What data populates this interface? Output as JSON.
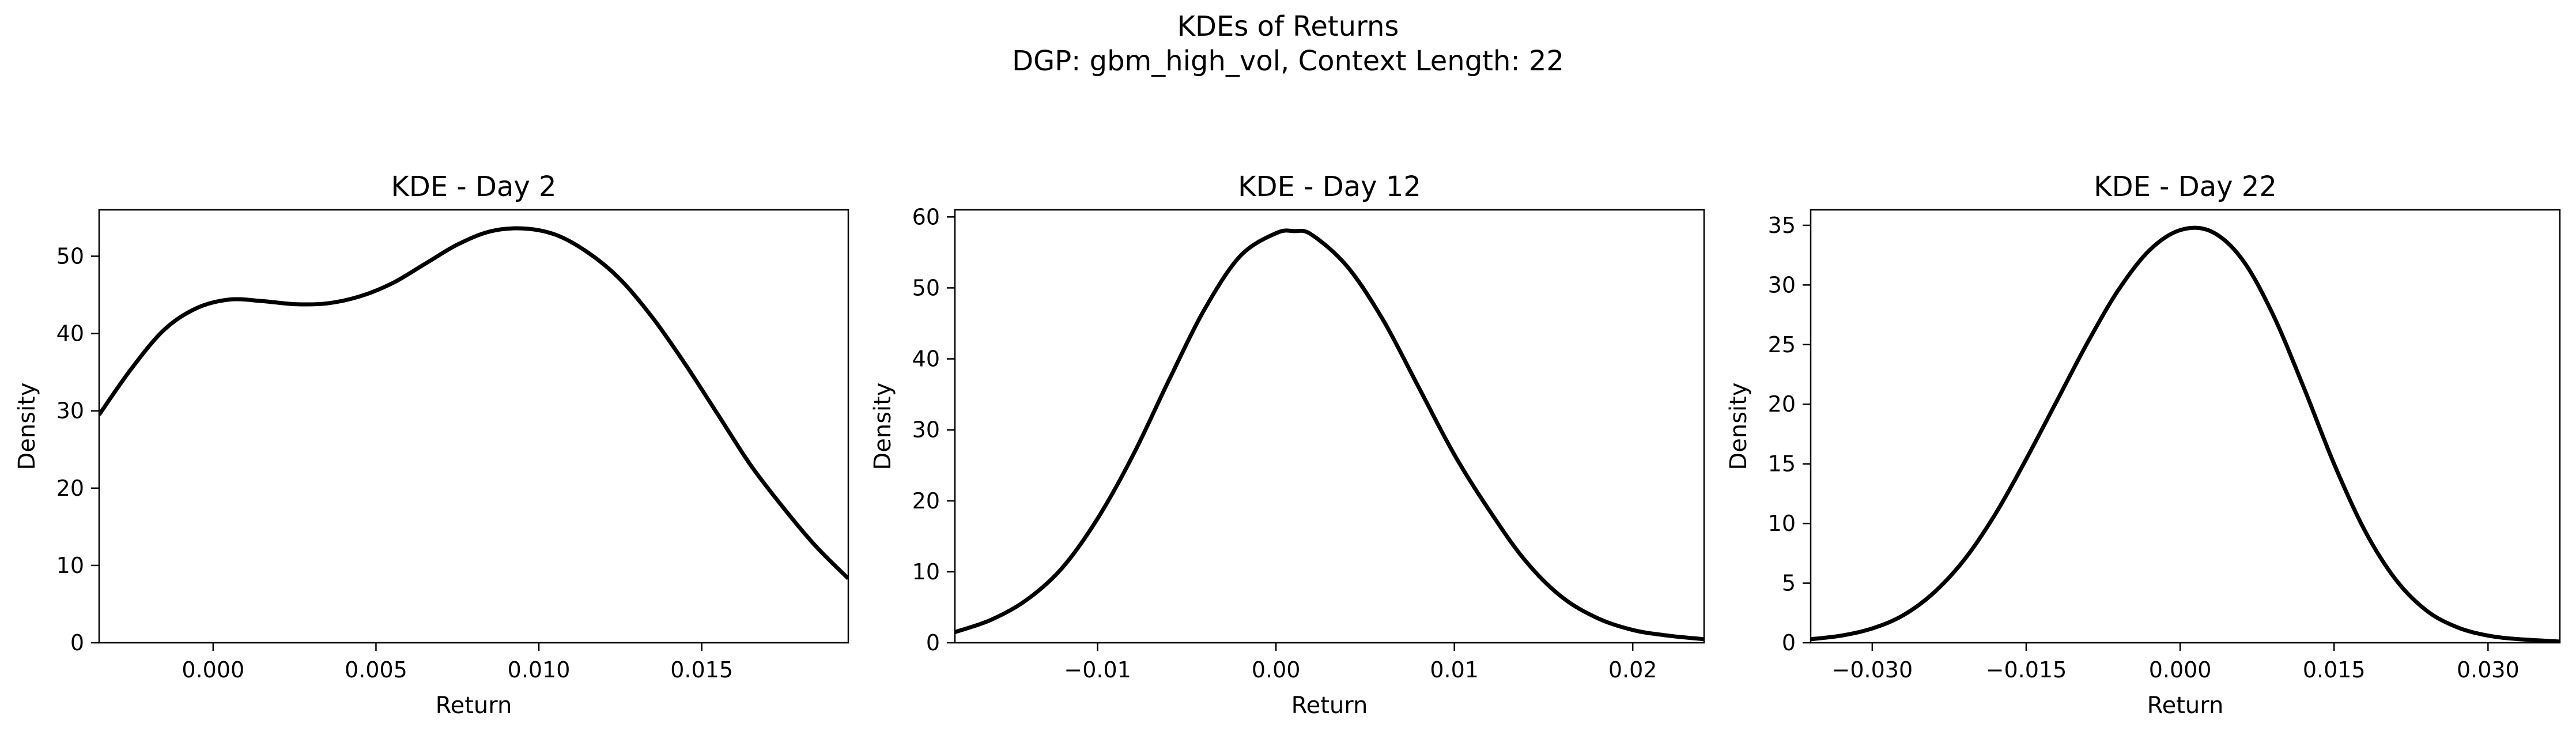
{
  "figure": {
    "suptitle_line1": "KDEs of Returns",
    "suptitle_line2": "DGP: gbm_high_vol, Context Length: 22"
  },
  "chart_data": [
    {
      "type": "line",
      "title": "KDE - Day 2",
      "xlabel": "Return",
      "ylabel": "Density",
      "xlim": [
        -0.0035,
        0.0195
      ],
      "ylim": [
        0,
        56
      ],
      "xticks": [
        0.0,
        0.005,
        0.01,
        0.015
      ],
      "xtick_labels": [
        "0.000",
        "0.005",
        "0.010",
        "0.015"
      ],
      "yticks": [
        0,
        10,
        20,
        30,
        40,
        50
      ],
      "ytick_labels": [
        "0",
        "10",
        "20",
        "30",
        "40",
        "50"
      ],
      "grid": false,
      "color": "#000000",
      "x": [
        -0.0035,
        -0.0025,
        -0.0015,
        -0.0005,
        0.0005,
        0.0015,
        0.0025,
        0.0035,
        0.0045,
        0.0055,
        0.0065,
        0.0075,
        0.0085,
        0.0095,
        0.0105,
        0.0115,
        0.0125,
        0.0135,
        0.0145,
        0.0155,
        0.0165,
        0.0175,
        0.0185,
        0.0195
      ],
      "y": [
        29.5,
        35.5,
        40.5,
        43.3,
        44.4,
        44.2,
        43.8,
        43.9,
        44.8,
        46.5,
        49.0,
        51.5,
        53.2,
        53.6,
        52.8,
        50.5,
        47.0,
        42.0,
        36.0,
        29.5,
        23.0,
        17.5,
        12.5,
        8.3
      ]
    },
    {
      "type": "line",
      "title": "KDE - Day 12",
      "xlabel": "Return",
      "ylabel": "Density",
      "xlim": [
        -0.018,
        0.024
      ],
      "ylim": [
        0,
        61
      ],
      "xticks": [
        -0.01,
        0.0,
        0.01,
        0.02
      ],
      "xtick_labels": [
        "−0.01",
        "0.00",
        "0.01",
        "0.02"
      ],
      "yticks": [
        0,
        10,
        20,
        30,
        40,
        50,
        60
      ],
      "ytick_labels": [
        "0",
        "10",
        "20",
        "30",
        "40",
        "50",
        "60"
      ],
      "grid": false,
      "color": "#000000",
      "x": [
        -0.018,
        -0.016,
        -0.014,
        -0.012,
        -0.01,
        -0.008,
        -0.006,
        -0.004,
        -0.002,
        0.0,
        0.001,
        0.002,
        0.004,
        0.006,
        0.008,
        0.01,
        0.012,
        0.014,
        0.016,
        0.018,
        0.02,
        0.022,
        0.024
      ],
      "y": [
        1.5,
        3.2,
        6.0,
        10.5,
        17.5,
        26.5,
        37.0,
        47.0,
        54.5,
        57.7,
        58.0,
        57.5,
        53.0,
        45.5,
        36.0,
        26.5,
        18.5,
        11.5,
        6.5,
        3.5,
        1.8,
        1.0,
        0.5
      ]
    },
    {
      "type": "line",
      "title": "KDE - Day 22",
      "xlabel": "Return",
      "ylabel": "Density",
      "xlim": [
        -0.036,
        0.037
      ],
      "ylim": [
        0,
        36.3
      ],
      "xticks": [
        -0.03,
        -0.015,
        0.0,
        0.015,
        0.03
      ],
      "xtick_labels": [
        "−0.030",
        "−0.015",
        "0.000",
        "0.015",
        "0.030"
      ],
      "yticks": [
        0,
        5,
        10,
        15,
        20,
        25,
        30,
        35
      ],
      "ytick_labels": [
        "0",
        "5",
        "10",
        "15",
        "20",
        "25",
        "30",
        "35"
      ],
      "grid": false,
      "color": "#000000",
      "x": [
        -0.036,
        -0.033,
        -0.03,
        -0.027,
        -0.024,
        -0.021,
        -0.018,
        -0.015,
        -0.012,
        -0.009,
        -0.006,
        -0.003,
        0.0,
        0.003,
        0.006,
        0.009,
        0.012,
        0.015,
        0.018,
        0.021,
        0.024,
        0.027,
        0.03,
        0.033,
        0.037
      ],
      "y": [
        0.3,
        0.6,
        1.2,
        2.3,
        4.2,
        7.0,
        10.8,
        15.4,
        20.3,
        25.2,
        29.6,
        32.9,
        34.6,
        34.5,
        32.2,
        27.6,
        21.5,
        15.0,
        9.4,
        5.3,
        2.7,
        1.3,
        0.6,
        0.3,
        0.1
      ]
    }
  ]
}
